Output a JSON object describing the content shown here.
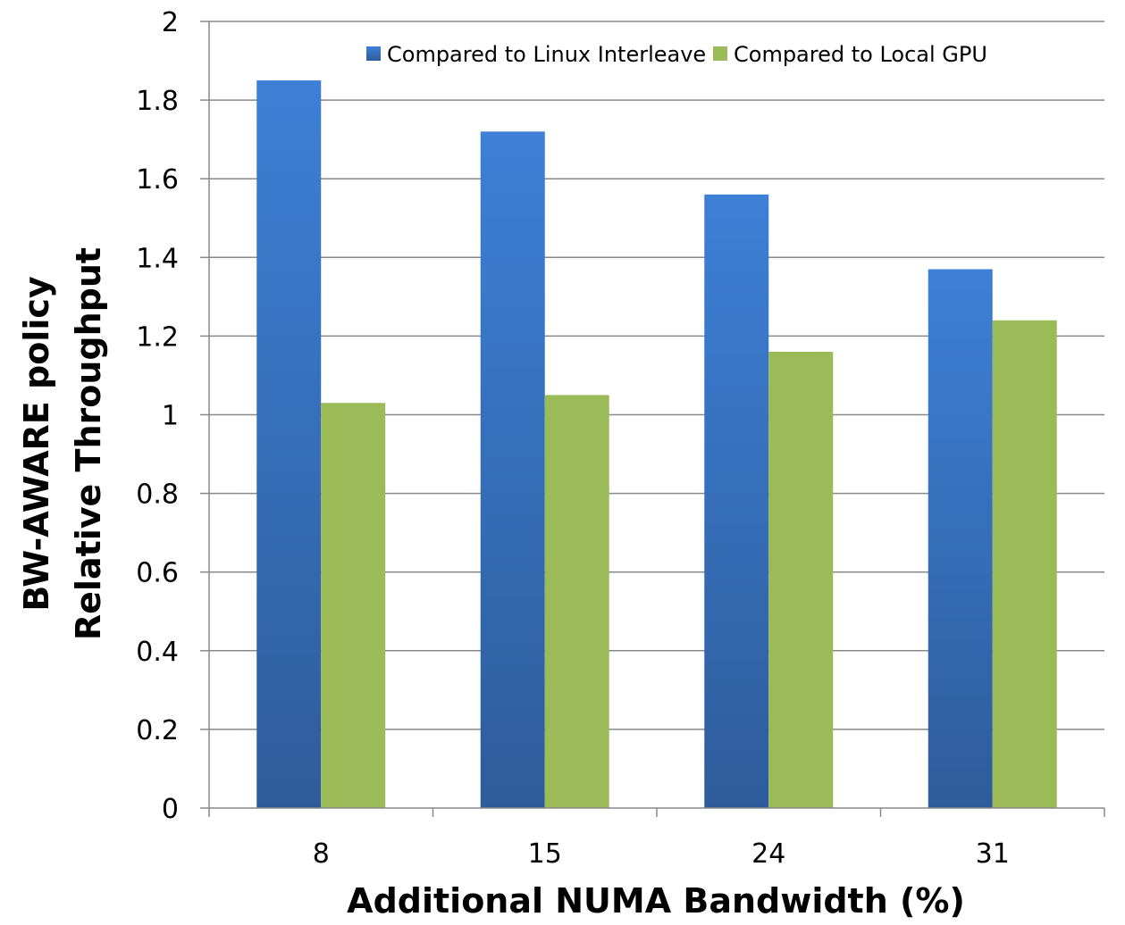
{
  "chart_data": {
    "type": "bar",
    "categories": [
      "8",
      "15",
      "24",
      "31"
    ],
    "series": [
      {
        "name": "Compared to Linux Interleave",
        "color": "#3a7ccf",
        "values": [
          1.85,
          1.72,
          1.56,
          1.37
        ]
      },
      {
        "name": "Compared to Local GPU",
        "color": "#9bbb59",
        "values": [
          1.03,
          1.05,
          1.16,
          1.24
        ]
      }
    ],
    "xlabel": "Additional NUMA Bandwidth (%)",
    "ylabel_lines": [
      "BW-AWARE policy",
      "Relative Throughput"
    ],
    "ylim": [
      0,
      2
    ],
    "yticks": [
      "0",
      "0.2",
      "0.4",
      "0.6",
      "0.8",
      "1",
      "1.2",
      "1.4",
      "1.6",
      "1.8",
      "2"
    ],
    "grid": true,
    "legend_position": "top"
  }
}
